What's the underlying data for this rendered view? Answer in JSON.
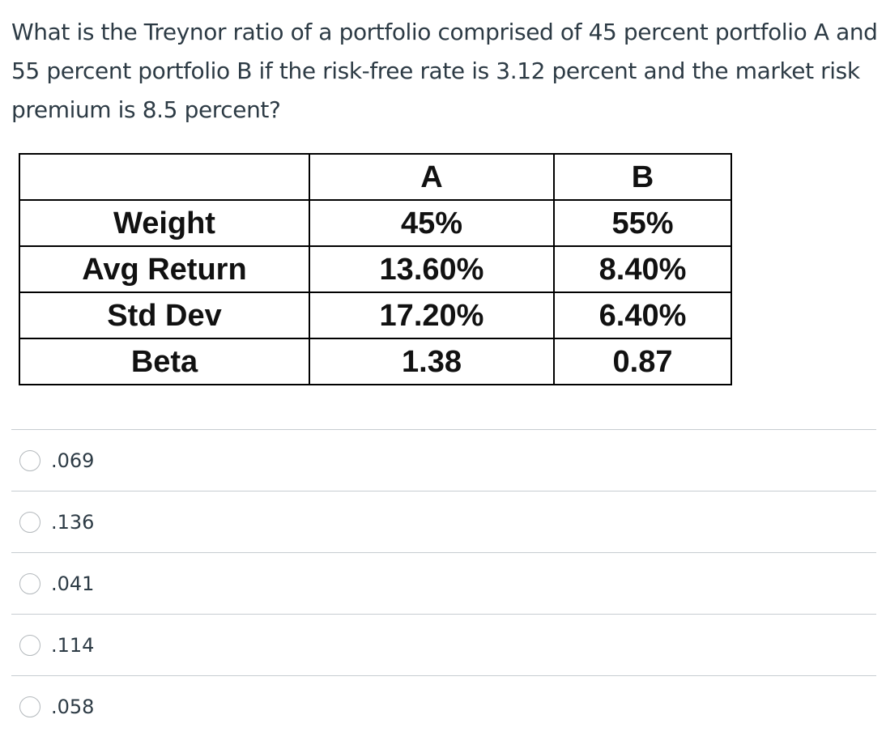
{
  "question": {
    "text": "What is the Treynor ratio of a portfolio comprised of 45 percent portfolio A and 55 percent portfolio B if the risk-free rate is 3.12 percent and the market risk premium is 8.5 percent?"
  },
  "table": {
    "header": [
      "",
      "A",
      "B"
    ],
    "rows": [
      [
        "Weight",
        "45%",
        "55%"
      ],
      [
        "Avg Return",
        "13.60%",
        "8.40%"
      ],
      [
        "Std Dev",
        "17.20%",
        "6.40%"
      ],
      [
        "Beta",
        "1.38",
        "0.87"
      ]
    ]
  },
  "answers": [
    {
      "label": ".069",
      "selected": false
    },
    {
      "label": ".136",
      "selected": false
    },
    {
      "label": ".041",
      "selected": false
    },
    {
      "label": ".114",
      "selected": false
    },
    {
      "label": ".058",
      "selected": false
    }
  ]
}
